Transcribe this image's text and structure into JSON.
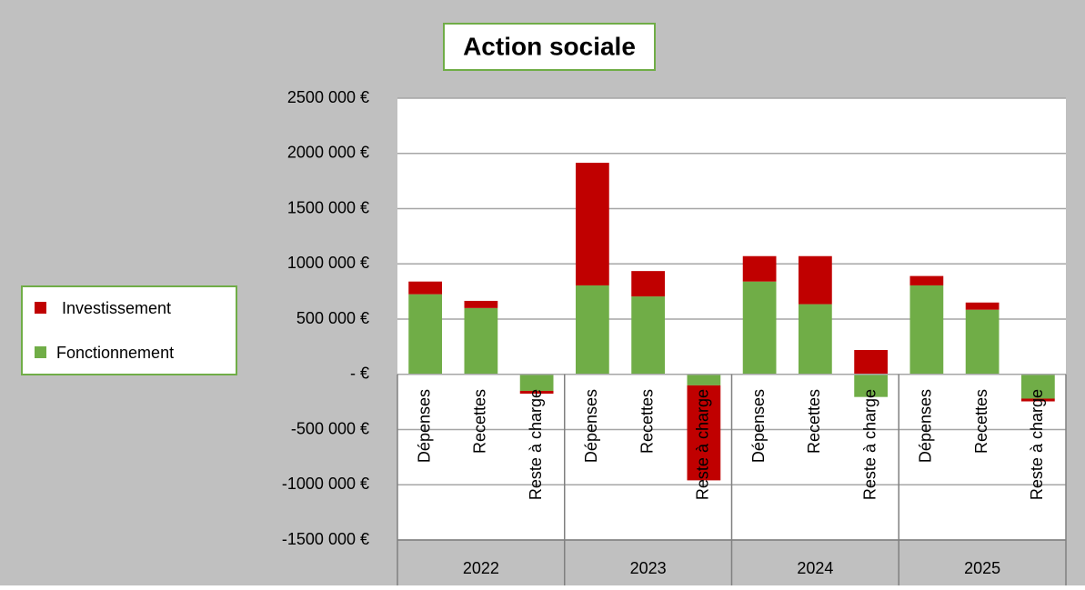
{
  "chart_data": {
    "type": "stacked_bar",
    "title": "Action sociale",
    "groups": [
      "2022",
      "2023",
      "2024",
      "2025"
    ],
    "categories": [
      "Dépenses",
      "Recettes",
      "Reste à charge",
      "Dépenses",
      "Recettes",
      "Reste à charge",
      "Dépenses",
      "Recettes",
      "Reste à charge",
      "Dépenses",
      "Recettes",
      "Reste à charge"
    ],
    "series": [
      {
        "name": "Fonctionnement",
        "color": "#70ad47",
        "values": [
          725000,
          600000,
          -150000,
          805000,
          705000,
          -100000,
          840000,
          635000,
          -205000,
          805000,
          585000,
          -220000
        ]
      },
      {
        "name": "Investissement",
        "color": "#c00000",
        "values": [
          115000,
          65000,
          -25000,
          1110000,
          230000,
          -860000,
          230000,
          435000,
          220000,
          85000,
          65000,
          -25000
        ]
      }
    ],
    "ylim": [
      -1500000,
      2500000
    ],
    "yticks": [
      {
        "value": -1500000,
        "label": "-1500 000 €"
      },
      {
        "value": -1000000,
        "label": "-1000 000 €"
      },
      {
        "value": -500000,
        "label": "-500 000 €"
      },
      {
        "value": 0,
        "label": "-  €"
      },
      {
        "value": 500000,
        "label": "500 000 €"
      },
      {
        "value": 1000000,
        "label": "1000 000 €"
      },
      {
        "value": 1500000,
        "label": "1500 000 €"
      },
      {
        "value": 2000000,
        "label": "2000 000 €"
      },
      {
        "value": 2500000,
        "label": "2500 000 €"
      }
    ],
    "grid": true,
    "legend": "left"
  }
}
